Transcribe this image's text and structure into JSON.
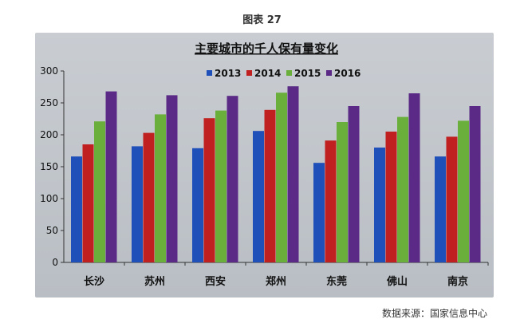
{
  "figure_caption": "图表 27",
  "source_note": "数据来源：国家信息中心",
  "chart_data": {
    "type": "bar",
    "title": "主要城市的千人保有量变化",
    "xlabel": "",
    "ylabel": "",
    "ylim": [
      0,
      300
    ],
    "yticks": [
      0,
      50,
      100,
      150,
      200,
      250,
      300
    ],
    "grid": false,
    "legend_position": "top",
    "categories": [
      "长沙",
      "苏州",
      "西安",
      "郑州",
      "东莞",
      "佛山",
      "南京"
    ],
    "series": [
      {
        "name": "2013",
        "color": "#1f4fb8",
        "values": [
          166,
          182,
          179,
          206,
          156,
          180,
          166
        ]
      },
      {
        "name": "2014",
        "color": "#c0201f",
        "values": [
          185,
          203,
          226,
          239,
          191,
          205,
          197
        ]
      },
      {
        "name": "2015",
        "color": "#6aae3c",
        "values": [
          221,
          232,
          238,
          266,
          220,
          228,
          222
        ]
      },
      {
        "name": "2016",
        "color": "#5a2a86",
        "values": [
          268,
          262,
          261,
          276,
          245,
          265,
          245
        ]
      }
    ]
  }
}
